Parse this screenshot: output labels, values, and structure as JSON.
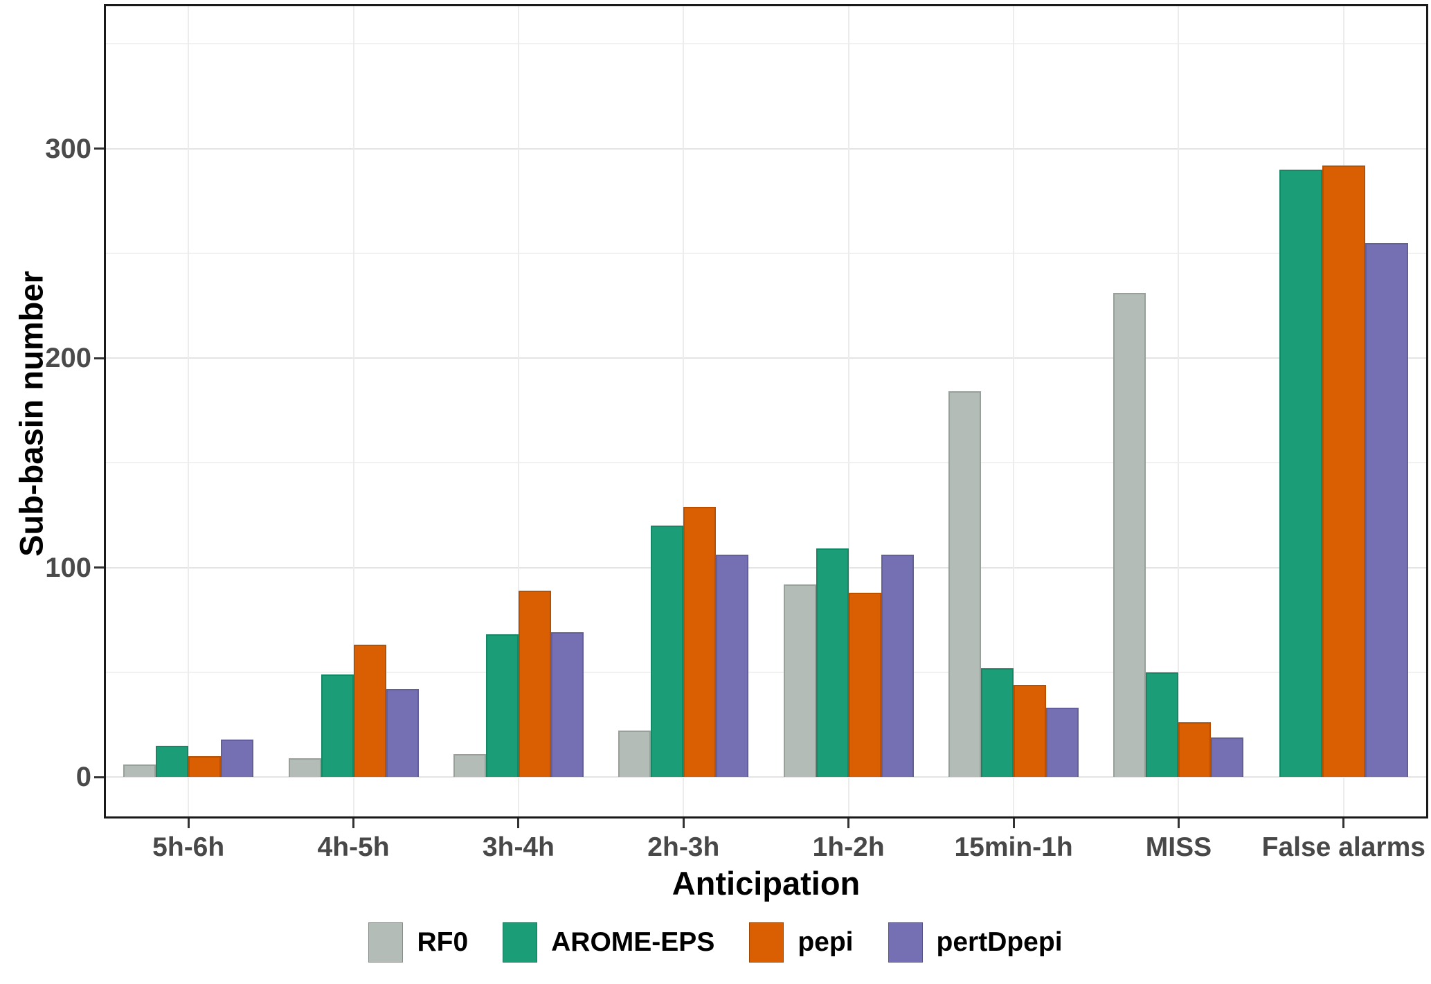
{
  "chart_data": {
    "type": "bar",
    "title": "",
    "xlabel": "Anticipation",
    "ylabel": "Sub-basin number",
    "categories": [
      "5h-6h",
      "4h-5h",
      "3h-4h",
      "2h-3h",
      "1h-2h",
      "15min-1h",
      "MISS",
      "False alarms"
    ],
    "series": [
      {
        "name": "RF0",
        "color": "#b3bcb6",
        "values": [
          6,
          9,
          11,
          22,
          92,
          184,
          231,
          null
        ]
      },
      {
        "name": "AROME-EPS",
        "color": "#1b9e77",
        "values": [
          15,
          49,
          68,
          120,
          109,
          52,
          50,
          290
        ]
      },
      {
        "name": "pepi",
        "color": "#d95f02",
        "values": [
          10,
          63,
          89,
          129,
          88,
          44,
          26,
          292
        ]
      },
      {
        "name": "pertDpepi",
        "color": "#7570b3",
        "values": [
          18,
          42,
          69,
          106,
          106,
          33,
          19,
          255
        ]
      }
    ],
    "ylim": [
      0,
      368
    ],
    "yticks": [
      0,
      100,
      200,
      300
    ],
    "yminorticks": [
      50,
      150,
      250,
      350
    ],
    "grid": {
      "horizontal": "major and minor gridlines",
      "vertical": "major gridline at each category center"
    },
    "legend_position": "bottom"
  },
  "legend": {
    "items": [
      {
        "label": "RF0",
        "color": "#b3bcb6"
      },
      {
        "label": "AROME-EPS",
        "color": "#1b9e77"
      },
      {
        "label": "pepi",
        "color": "#d95f02"
      },
      {
        "label": "pertDpepi",
        "color": "#7570b3"
      }
    ]
  },
  "colors": {
    "background": "#ffffff",
    "panel_border": "#1a1a1a",
    "grid_major": "#e4e4e4",
    "grid_minor": "#f1f1f1",
    "tick": "#333333",
    "tick_label": "#4a4a4a",
    "axis_title": "#000000"
  }
}
